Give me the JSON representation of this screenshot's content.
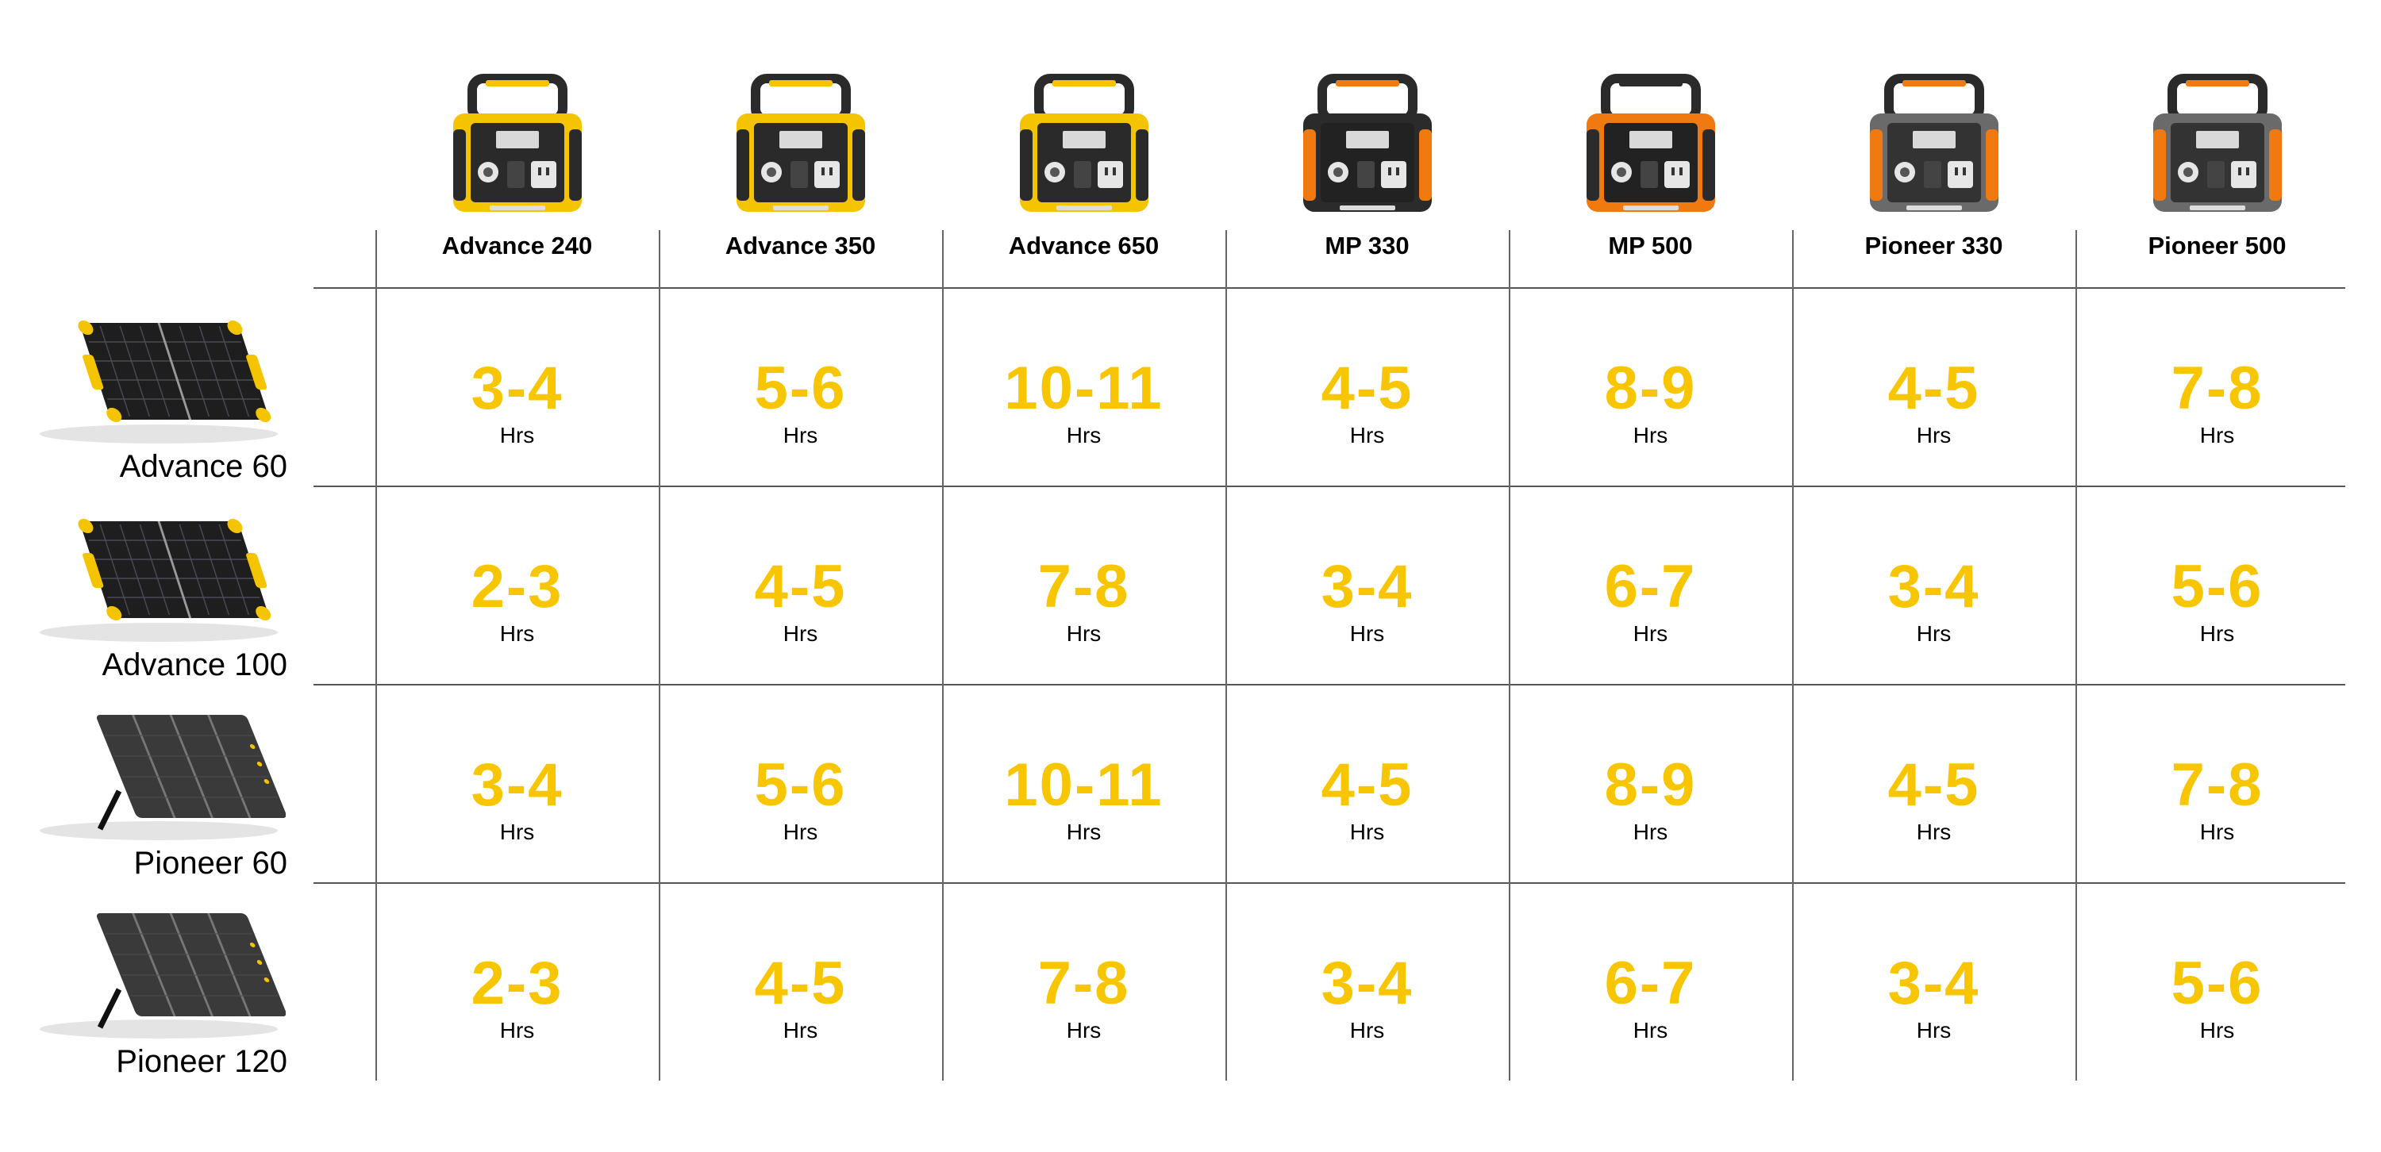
{
  "chart_data": {
    "type": "table",
    "columns": [
      "Advance 240",
      "Advance 350",
      "Advance 650",
      "MP 330",
      "MP 500",
      "Pioneer 330",
      "Pioneer 500"
    ],
    "rows": [
      {
        "name": "Advance 60",
        "values": [
          "3-4",
          "5-6",
          "10-11",
          "4-5",
          "8-9",
          "4-5",
          "7-8"
        ]
      },
      {
        "name": "Advance 100",
        "values": [
          "2-3",
          "4-5",
          "7-8",
          "3-4",
          "6-7",
          "3-4",
          "5-6"
        ]
      },
      {
        "name": "Pioneer 60",
        "values": [
          "3-4",
          "5-6",
          "10-11",
          "4-5",
          "8-9",
          "4-5",
          "7-8"
        ]
      },
      {
        "name": "Pioneer 120",
        "values": [
          "2-3",
          "4-5",
          "7-8",
          "3-4",
          "6-7",
          "3-4",
          "5-6"
        ]
      }
    ],
    "unit": "Hrs"
  },
  "colors": {
    "value": "#f7c600",
    "text": "#000000",
    "grid": "#555555"
  },
  "product_styles": [
    {
      "body": "#f5c400",
      "accent": "#f5c400",
      "panel": "#2a2a2a"
    },
    {
      "body": "#f5c400",
      "accent": "#f5c400",
      "panel": "#2a2a2a"
    },
    {
      "body": "#f5c400",
      "accent": "#f5c400",
      "panel": "#2a2a2a"
    },
    {
      "body": "#2b2b2b",
      "accent": "#f07a10",
      "panel": "#222222"
    },
    {
      "body": "#f07a10",
      "accent": "#2b2b2b",
      "panel": "#222222"
    },
    {
      "body": "#6a6a6a",
      "accent": "#f07a10",
      "panel": "#333333"
    },
    {
      "body": "#6a6a6a",
      "accent": "#f07a10",
      "panel": "#333333"
    }
  ],
  "panel_styles": [
    {
      "kind": "foldable",
      "frame": "#1e1e1e",
      "corner": "#f5c400"
    },
    {
      "kind": "foldable",
      "frame": "#1e1e1e",
      "corner": "#f5c400"
    },
    {
      "kind": "kickstand",
      "frame": "#3a3a3a",
      "corner": "#3a3a3a"
    },
    {
      "kind": "kickstand",
      "frame": "#3a3a3a",
      "corner": "#3a3a3a"
    }
  ]
}
